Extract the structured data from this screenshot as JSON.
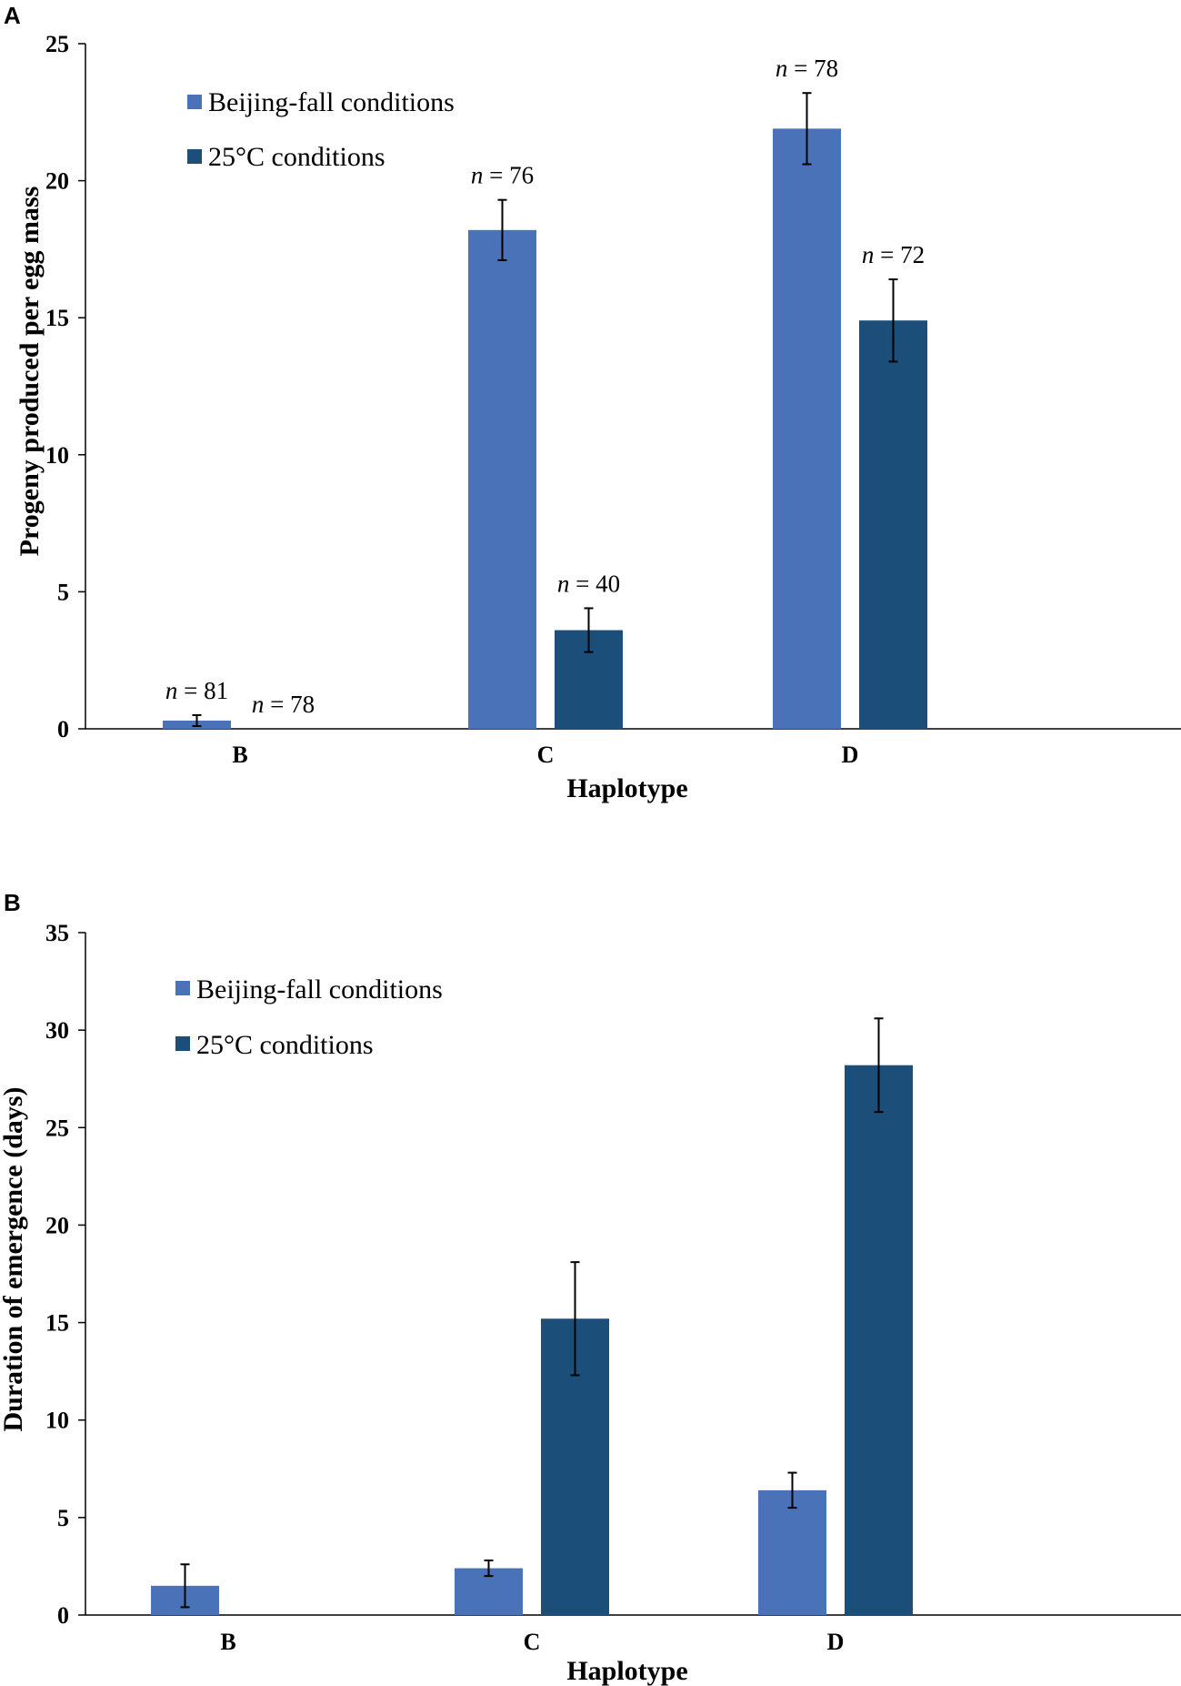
{
  "colors": {
    "beijing": "#4a72b8",
    "c25": "#1b4f7a"
  },
  "chart_data": [
    {
      "panel": "A",
      "type": "bar",
      "xlabel": "Haplotype",
      "ylabel": "Progeny produced per egg mass",
      "ylim": [
        0,
        25
      ],
      "yticks": [
        "0",
        "5",
        "10",
        "15",
        "20",
        "25"
      ],
      "categories": [
        "B",
        "C",
        "D"
      ],
      "legend_position": "top-left",
      "series": [
        {
          "name": "Beijing-fall conditions",
          "values": [
            0.3,
            18.2,
            21.9
          ],
          "errors": [
            0.2,
            1.1,
            1.3
          ],
          "n_labels": [
            {
              "prefix": "n",
              "suffix": " = 81"
            },
            {
              "prefix": "n",
              "suffix": " = 76"
            },
            {
              "prefix": "n",
              "suffix": " = 78"
            }
          ]
        },
        {
          "name": "25°C conditions",
          "values": [
            0,
            3.6,
            14.9
          ],
          "errors": [
            0,
            0.8,
            1.5
          ],
          "n_labels": [
            {
              "prefix": "n",
              "suffix": " = 78"
            },
            {
              "prefix": "n",
              "suffix": " = 40"
            },
            {
              "prefix": "n",
              "suffix": " = 72"
            }
          ]
        }
      ]
    },
    {
      "panel": "B",
      "type": "bar",
      "xlabel": "Haplotype",
      "ylabel": "Duration of emergence (days)",
      "ylim": [
        0,
        35
      ],
      "yticks": [
        "0",
        "5",
        "10",
        "15",
        "20",
        "25",
        "30",
        "35"
      ],
      "categories": [
        "B",
        "C",
        "D"
      ],
      "legend_position": "top-left",
      "series": [
        {
          "name": "Beijing-fall conditions",
          "values": [
            1.5,
            2.4,
            6.4
          ],
          "errors": [
            1.1,
            0.4,
            0.9
          ]
        },
        {
          "name": "25°C conditions",
          "values": [
            0,
            15.2,
            28.2
          ],
          "errors": [
            0,
            2.9,
            2.4
          ]
        }
      ]
    }
  ]
}
